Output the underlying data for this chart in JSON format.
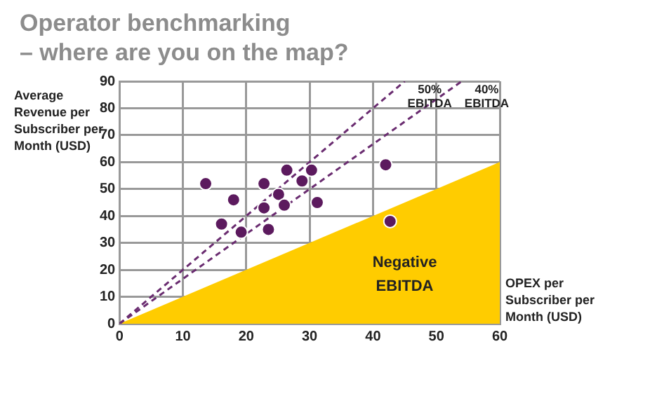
{
  "chart_data": {
    "type": "scatter",
    "title": "Operator benchmarking\n– where are you on the map?",
    "ylabel": "Average Revenue per Subscriber per Month (USD)",
    "xlabel": "OPEX per Subscriber per Month (USD)",
    "xlim": [
      0,
      60
    ],
    "xticks": [
      0,
      10,
      20,
      30,
      40,
      50,
      60
    ],
    "ylim": [
      0,
      90
    ],
    "yticks": [
      0,
      10,
      20,
      30,
      40,
      50,
      60,
      70,
      80,
      90
    ],
    "grid": true,
    "marker": "circle",
    "series": [
      {
        "type": "area",
        "name": "Negative EBITDA",
        "marker": "none",
        "color": "#ffcc00",
        "x": [
          0,
          60
        ],
        "values": [
          0,
          60
        ]
      },
      {
        "type": "line",
        "name": "50% EBITDA",
        "marker": "none",
        "color": "#6a2c70",
        "line_style": "dashed",
        "x": [
          0,
          45
        ],
        "values": [
          0,
          90
        ]
      },
      {
        "type": "line",
        "name": "40% EBITDA",
        "marker": "none",
        "color": "#6a2c70",
        "line_style": "dashed",
        "x": [
          0,
          54
        ],
        "values": [
          0,
          90
        ]
      },
      {
        "color": "#5c1a5e",
        "x": [
          13.6,
          18.0,
          16.1,
          19.2,
          22.8,
          22.8,
          23.5,
          25.1,
          26.0,
          26.4,
          28.8,
          30.3,
          31.2,
          42.0,
          42.7
        ],
        "values": [
          52,
          46,
          37,
          34,
          52,
          43,
          35,
          48,
          44,
          57,
          53,
          57,
          45,
          59,
          38
        ]
      }
    ]
  }
}
